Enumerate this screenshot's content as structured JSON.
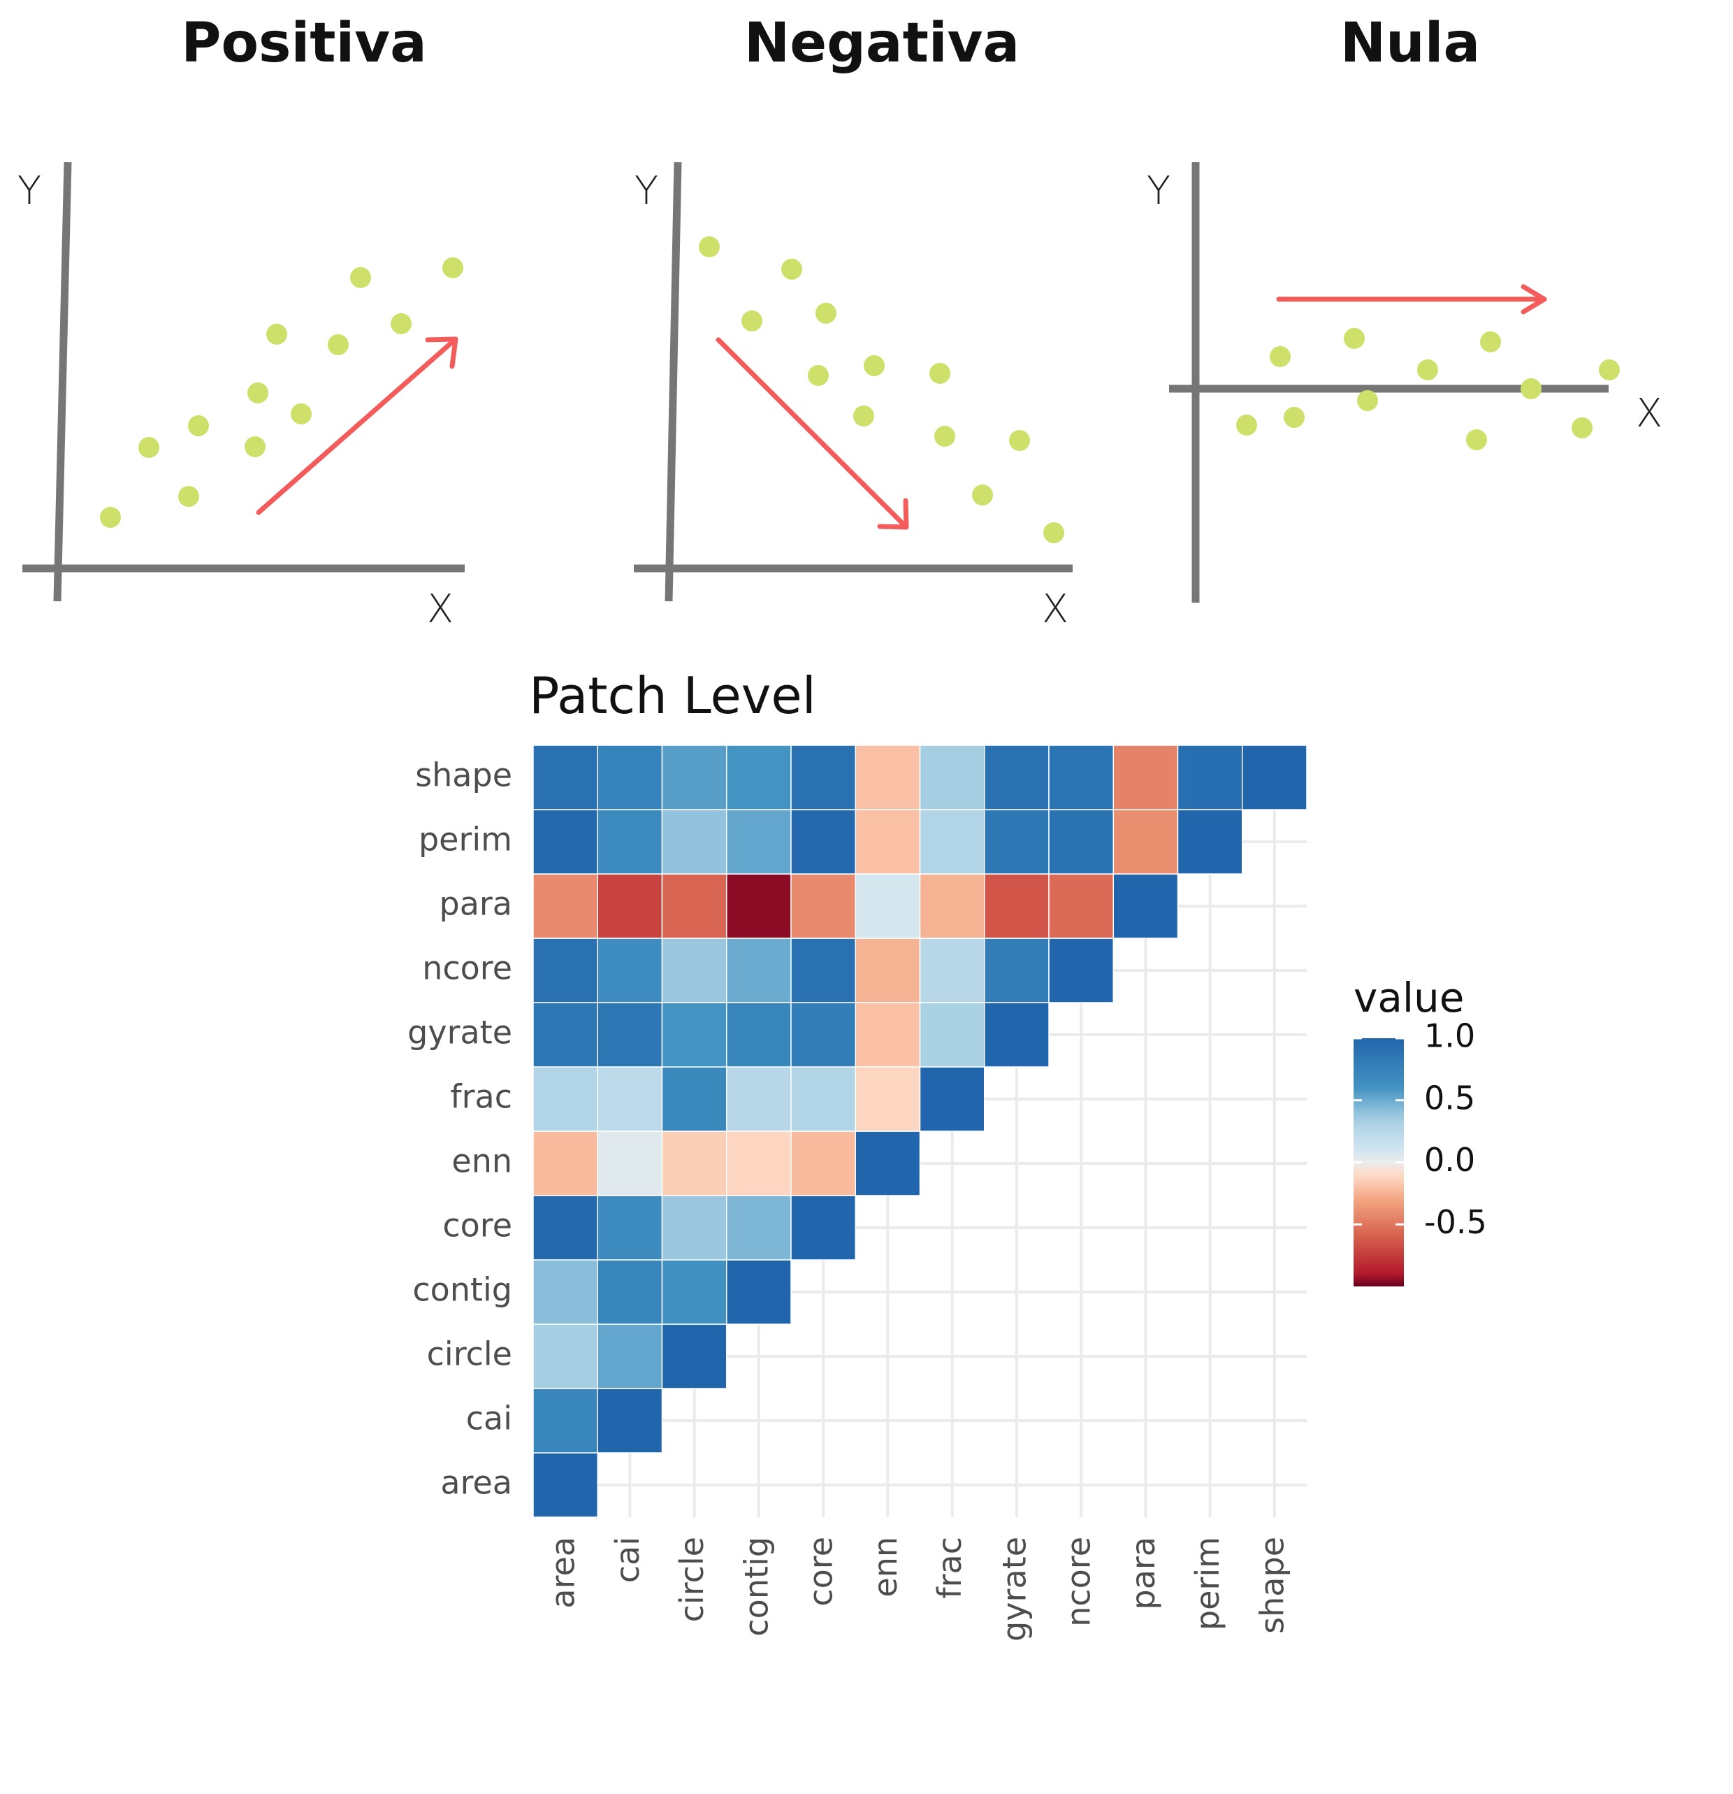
{
  "panels": [
    {
      "title": "Positiva",
      "xlabel": "X",
      "ylabel": "Y"
    },
    {
      "title": "Negativa",
      "xlabel": "X",
      "ylabel": "Y"
    },
    {
      "title": "Nula",
      "xlabel": "X",
      "ylabel": "Y"
    }
  ],
  "colors": {
    "axis": "#767676",
    "point": "#cfe06a",
    "arrow": "#f45b5b",
    "grid": "#ebebeb",
    "neg_strong": "#b2182b",
    "pos_strong": "#2166ac",
    "neutral": "#f7f7f7"
  },
  "chart_data": {
    "type": "heatmap",
    "title": "Patch Level",
    "variables": [
      "area",
      "cai",
      "circle",
      "contig",
      "core",
      "enn",
      "frac",
      "gyrate",
      "ncore",
      "para",
      "perim",
      "shape"
    ],
    "lower_triangle_values": [
      [
        1.0
      ],
      [
        0.72,
        1.0
      ],
      [
        0.35,
        0.52,
        1.0
      ],
      [
        0.42,
        0.72,
        0.62,
        1.0
      ],
      [
        0.97,
        0.68,
        0.38,
        0.45,
        1.0
      ],
      [
        -0.22,
        0.05,
        -0.15,
        -0.12,
        -0.22,
        1.0
      ],
      [
        0.28,
        0.22,
        0.7,
        0.25,
        0.28,
        -0.12,
        1.0
      ],
      [
        0.85,
        0.85,
        0.6,
        0.72,
        0.8,
        -0.2,
        0.32,
        1.0
      ],
      [
        0.9,
        0.65,
        0.38,
        0.5,
        0.9,
        -0.25,
        0.25,
        0.8,
        1.0
      ],
      [
        -0.42,
        -0.72,
        -0.58,
        -0.95,
        -0.42,
        0.08,
        -0.25,
        -0.65,
        -0.55,
        1.0
      ],
      [
        0.97,
        0.68,
        0.4,
        0.52,
        0.97,
        -0.2,
        0.28,
        0.85,
        0.9,
        -0.4,
        1.0
      ],
      [
        0.9,
        0.75,
        0.55,
        0.6,
        0.9,
        -0.2,
        0.35,
        0.9,
        0.88,
        -0.45,
        0.92,
        1.0
      ]
    ],
    "legend": {
      "title": "value",
      "ticks": [
        "1.0",
        "0.5",
        "0.0",
        "-0.5"
      ],
      "range": [
        -1,
        1
      ],
      "position": "right"
    },
    "grid": true
  }
}
